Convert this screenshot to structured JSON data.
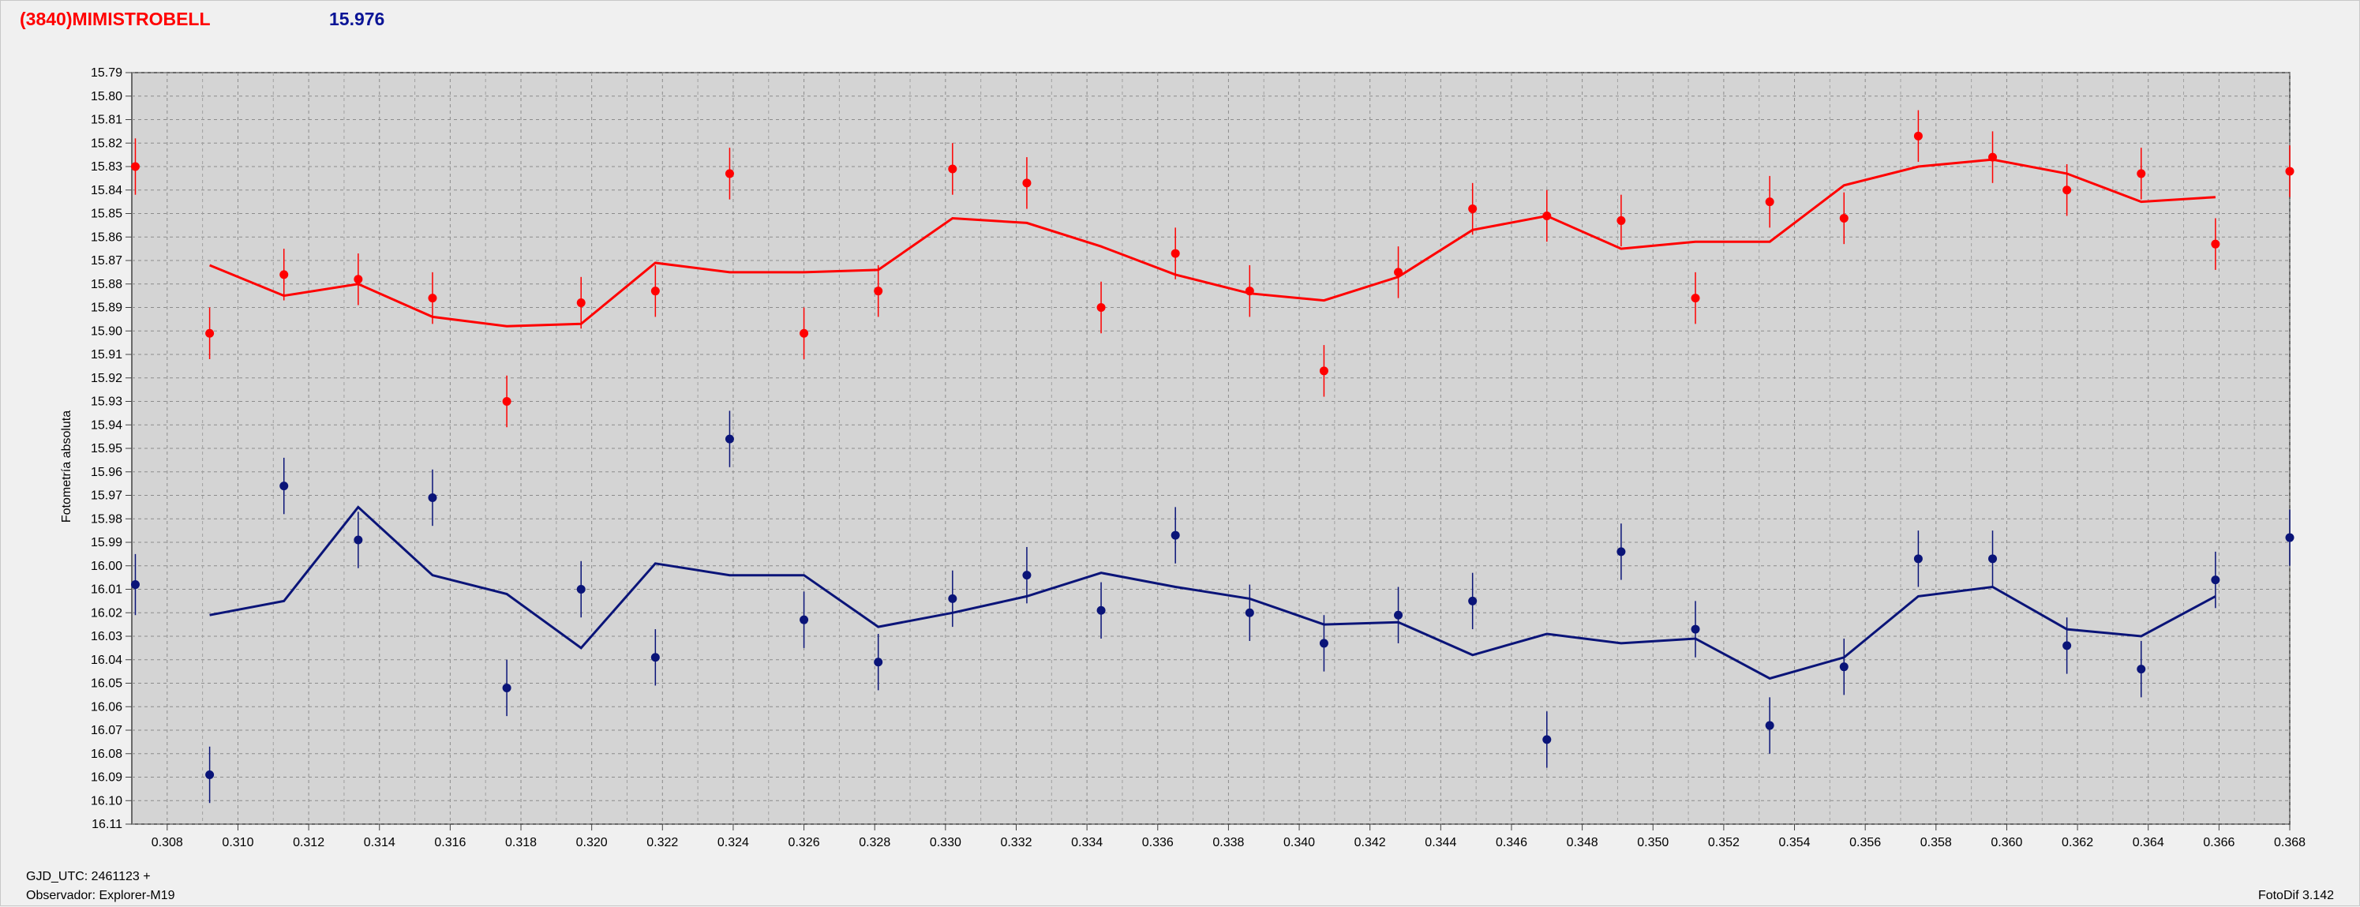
{
  "header": {
    "object": "(3840)MIMISTROBELL",
    "magnitude": "15.976"
  },
  "footer": {
    "gjd": "GJD_UTC: 2461123 +",
    "observer": "Observador: Explorer-M19",
    "version": "FotoDif 3.142"
  },
  "colors": {
    "red": "#ff0000",
    "blue": "#0a1478"
  },
  "chart_data": {
    "type": "scatter",
    "ylabel": "Fotometría absoluta",
    "xlim": [
      0.307,
      0.368
    ],
    "ylim": [
      15.79,
      16.11
    ],
    "y_inverted": true,
    "grid": true,
    "x_ticks": [
      "0.308",
      "0.310",
      "0.312",
      "0.314",
      "0.316",
      "0.318",
      "0.320",
      "0.322",
      "0.324",
      "0.326",
      "0.328",
      "0.330",
      "0.332",
      "0.334",
      "0.336",
      "0.338",
      "0.340",
      "0.342",
      "0.344",
      "0.346",
      "0.348",
      "0.350",
      "0.352",
      "0.354",
      "0.356",
      "0.358",
      "0.360",
      "0.362",
      "0.364",
      "0.366",
      "0.368"
    ],
    "y_ticks": [
      "15.79",
      "15.80",
      "15.81",
      "15.82",
      "15.83",
      "15.84",
      "15.85",
      "15.86",
      "15.87",
      "15.88",
      "15.89",
      "15.90",
      "15.91",
      "15.92",
      "15.93",
      "15.94",
      "15.95",
      "15.96",
      "15.97",
      "15.98",
      "15.99",
      "16.00",
      "16.01",
      "16.02",
      "16.03",
      "16.04",
      "16.05",
      "16.06",
      "16.07",
      "16.08",
      "16.09",
      "16.10",
      "16.11"
    ],
    "series": [
      {
        "color": "red",
        "points": [
          {
            "x": 0.3071,
            "y": 15.83,
            "e": 0.012
          },
          {
            "x": 0.3092,
            "y": 15.901,
            "e": 0.011
          },
          {
            "x": 0.3113,
            "y": 15.876,
            "e": 0.011
          },
          {
            "x": 0.3134,
            "y": 15.878,
            "e": 0.011
          },
          {
            "x": 0.3155,
            "y": 15.886,
            "e": 0.011
          },
          {
            "x": 0.3176,
            "y": 15.93,
            "e": 0.011
          },
          {
            "x": 0.3197,
            "y": 15.888,
            "e": 0.011
          },
          {
            "x": 0.3218,
            "y": 15.883,
            "e": 0.011
          },
          {
            "x": 0.3239,
            "y": 15.833,
            "e": 0.011
          },
          {
            "x": 0.326,
            "y": 15.901,
            "e": 0.011
          },
          {
            "x": 0.3281,
            "y": 15.883,
            "e": 0.011
          },
          {
            "x": 0.3302,
            "y": 15.831,
            "e": 0.011
          },
          {
            "x": 0.3323,
            "y": 15.837,
            "e": 0.011
          },
          {
            "x": 0.3344,
            "y": 15.89,
            "e": 0.011
          },
          {
            "x": 0.3365,
            "y": 15.867,
            "e": 0.011
          },
          {
            "x": 0.3386,
            "y": 15.883,
            "e": 0.011
          },
          {
            "x": 0.3407,
            "y": 15.917,
            "e": 0.011
          },
          {
            "x": 0.3428,
            "y": 15.875,
            "e": 0.011
          },
          {
            "x": 0.3449,
            "y": 15.848,
            "e": 0.011
          },
          {
            "x": 0.347,
            "y": 15.851,
            "e": 0.011
          },
          {
            "x": 0.3491,
            "y": 15.853,
            "e": 0.011
          },
          {
            "x": 0.3512,
            "y": 15.886,
            "e": 0.011
          },
          {
            "x": 0.3533,
            "y": 15.845,
            "e": 0.011
          },
          {
            "x": 0.3554,
            "y": 15.852,
            "e": 0.011
          },
          {
            "x": 0.3575,
            "y": 15.817,
            "e": 0.011
          },
          {
            "x": 0.3596,
            "y": 15.826,
            "e": 0.011
          },
          {
            "x": 0.3617,
            "y": 15.84,
            "e": 0.011
          },
          {
            "x": 0.3638,
            "y": 15.833,
            "e": 0.011
          },
          {
            "x": 0.3659,
            "y": 15.863,
            "e": 0.011
          },
          {
            "x": 0.368,
            "y": 15.832,
            "e": 0.011
          }
        ],
        "line": [
          [
            0.3092,
            15.872
          ],
          [
            0.3113,
            15.885
          ],
          [
            0.3134,
            15.88
          ],
          [
            0.3155,
            15.894
          ],
          [
            0.3176,
            15.898
          ],
          [
            0.3197,
            15.897
          ],
          [
            0.3218,
            15.871
          ],
          [
            0.3239,
            15.875
          ],
          [
            0.326,
            15.875
          ],
          [
            0.3281,
            15.874
          ],
          [
            0.3302,
            15.852
          ],
          [
            0.3323,
            15.854
          ],
          [
            0.3344,
            15.864
          ],
          [
            0.3365,
            15.876
          ],
          [
            0.3386,
            15.884
          ],
          [
            0.3407,
            15.887
          ],
          [
            0.3428,
            15.877
          ],
          [
            0.3449,
            15.857
          ],
          [
            0.347,
            15.851
          ],
          [
            0.3491,
            15.865
          ],
          [
            0.3512,
            15.862
          ],
          [
            0.3533,
            15.862
          ],
          [
            0.3554,
            15.838
          ],
          [
            0.3575,
            15.83
          ],
          [
            0.3596,
            15.827
          ],
          [
            0.3617,
            15.833
          ],
          [
            0.3638,
            15.845
          ],
          [
            0.3659,
            15.843
          ]
        ]
      },
      {
        "color": "blue",
        "points": [
          {
            "x": 0.3071,
            "y": 16.008,
            "e": 0.013
          },
          {
            "x": 0.3092,
            "y": 16.089,
            "e": 0.012
          },
          {
            "x": 0.3113,
            "y": 15.966,
            "e": 0.012
          },
          {
            "x": 0.3134,
            "y": 15.989,
            "e": 0.012
          },
          {
            "x": 0.3155,
            "y": 15.971,
            "e": 0.012
          },
          {
            "x": 0.3176,
            "y": 16.052,
            "e": 0.012
          },
          {
            "x": 0.3197,
            "y": 16.01,
            "e": 0.012
          },
          {
            "x": 0.3218,
            "y": 16.039,
            "e": 0.012
          },
          {
            "x": 0.3239,
            "y": 15.946,
            "e": 0.012
          },
          {
            "x": 0.326,
            "y": 16.023,
            "e": 0.012
          },
          {
            "x": 0.3281,
            "y": 16.041,
            "e": 0.012
          },
          {
            "x": 0.3302,
            "y": 16.014,
            "e": 0.012
          },
          {
            "x": 0.3323,
            "y": 16.004,
            "e": 0.012
          },
          {
            "x": 0.3344,
            "y": 16.019,
            "e": 0.012
          },
          {
            "x": 0.3365,
            "y": 15.987,
            "e": 0.012
          },
          {
            "x": 0.3386,
            "y": 16.02,
            "e": 0.012
          },
          {
            "x": 0.3407,
            "y": 16.033,
            "e": 0.012
          },
          {
            "x": 0.3428,
            "y": 16.021,
            "e": 0.012
          },
          {
            "x": 0.3449,
            "y": 16.015,
            "e": 0.012
          },
          {
            "x": 0.347,
            "y": 16.074,
            "e": 0.012
          },
          {
            "x": 0.3491,
            "y": 15.994,
            "e": 0.012
          },
          {
            "x": 0.3512,
            "y": 16.027,
            "e": 0.012
          },
          {
            "x": 0.3533,
            "y": 16.068,
            "e": 0.012
          },
          {
            "x": 0.3554,
            "y": 16.043,
            "e": 0.012
          },
          {
            "x": 0.3575,
            "y": 15.997,
            "e": 0.012
          },
          {
            "x": 0.3596,
            "y": 15.997,
            "e": 0.012
          },
          {
            "x": 0.3617,
            "y": 16.034,
            "e": 0.012
          },
          {
            "x": 0.3638,
            "y": 16.044,
            "e": 0.012
          },
          {
            "x": 0.3659,
            "y": 16.006,
            "e": 0.012
          },
          {
            "x": 0.368,
            "y": 15.988,
            "e": 0.012
          }
        ],
        "line": [
          [
            0.3092,
            16.021
          ],
          [
            0.3113,
            16.015
          ],
          [
            0.3134,
            15.975
          ],
          [
            0.3155,
            16.004
          ],
          [
            0.3176,
            16.012
          ],
          [
            0.3197,
            16.035
          ],
          [
            0.3218,
            15.999
          ],
          [
            0.3239,
            16.004
          ],
          [
            0.326,
            16.004
          ],
          [
            0.3281,
            16.026
          ],
          [
            0.3302,
            16.02
          ],
          [
            0.3323,
            16.013
          ],
          [
            0.3344,
            16.003
          ],
          [
            0.3365,
            16.009
          ],
          [
            0.3386,
            16.014
          ],
          [
            0.3407,
            16.025
          ],
          [
            0.3428,
            16.024
          ],
          [
            0.3449,
            16.038
          ],
          [
            0.347,
            16.029
          ],
          [
            0.3491,
            16.033
          ],
          [
            0.3512,
            16.031
          ],
          [
            0.3533,
            16.048
          ],
          [
            0.3554,
            16.039
          ],
          [
            0.3575,
            16.013
          ],
          [
            0.3596,
            16.009
          ],
          [
            0.3617,
            16.027
          ],
          [
            0.3638,
            16.03
          ],
          [
            0.3659,
            16.013
          ]
        ]
      }
    ]
  }
}
